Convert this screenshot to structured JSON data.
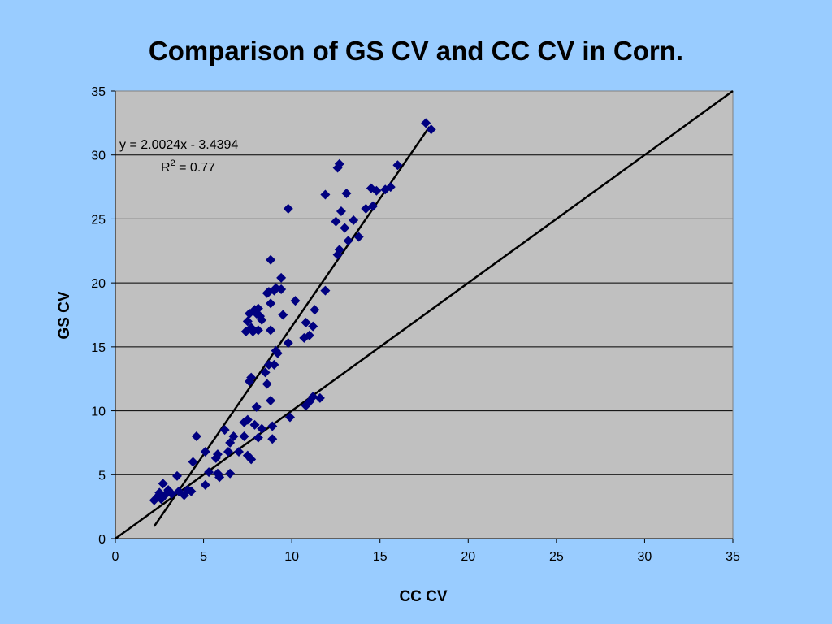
{
  "chart_data": {
    "type": "scatter",
    "title": "Comparison of GS CV and CC CV in Corn.",
    "xlabel": "CC CV",
    "ylabel": "GS CV",
    "xlim": [
      0,
      35
    ],
    "ylim": [
      0,
      35
    ],
    "xticks": [
      0,
      5,
      10,
      15,
      20,
      25,
      30,
      35
    ],
    "yticks": [
      0,
      5,
      10,
      15,
      20,
      25,
      30,
      35
    ],
    "grid": "horizontal",
    "plot_background": "#c0c0c0",
    "marker_color": "#000080",
    "marker": "diamond",
    "trendline": {
      "equation": "y = 2.0024x - 3.4394",
      "r_squared_prefix": "R",
      "r_squared_sup": "2",
      "r_squared_value": " = 0.77",
      "slope": 2.0024,
      "intercept": -3.4394,
      "x_range": [
        2.2,
        17.8
      ]
    },
    "reference_line": {
      "slope": 1,
      "intercept": 0,
      "x_range": [
        0,
        35
      ]
    },
    "points": [
      [
        2.2,
        3.0
      ],
      [
        2.4,
        3.3
      ],
      [
        2.5,
        3.6
      ],
      [
        2.6,
        3.1
      ],
      [
        2.7,
        4.3
      ],
      [
        2.8,
        3.4
      ],
      [
        3.0,
        3.8
      ],
      [
        3.2,
        3.5
      ],
      [
        3.5,
        4.9
      ],
      [
        3.6,
        3.7
      ],
      [
        3.9,
        3.4
      ],
      [
        4.1,
        3.8
      ],
      [
        4.3,
        3.7
      ],
      [
        4.4,
        6.0
      ],
      [
        4.6,
        8.0
      ],
      [
        5.1,
        6.8
      ],
      [
        5.1,
        4.2
      ],
      [
        5.3,
        5.2
      ],
      [
        5.7,
        6.3
      ],
      [
        5.8,
        6.6
      ],
      [
        5.8,
        5.1
      ],
      [
        5.9,
        4.8
      ],
      [
        6.2,
        8.5
      ],
      [
        6.4,
        6.8
      ],
      [
        6.5,
        5.1
      ],
      [
        6.5,
        7.5
      ],
      [
        6.7,
        8.0
      ],
      [
        7.0,
        6.8
      ],
      [
        7.3,
        9.1
      ],
      [
        7.3,
        8.0
      ],
      [
        7.5,
        9.3
      ],
      [
        7.5,
        6.5
      ],
      [
        7.7,
        6.2
      ],
      [
        7.9,
        8.9
      ],
      [
        8.0,
        10.3
      ],
      [
        8.1,
        7.9
      ],
      [
        8.3,
        8.6
      ],
      [
        8.5,
        13.0
      ],
      [
        8.6,
        12.1
      ],
      [
        8.7,
        13.6
      ],
      [
        8.8,
        16.3
      ],
      [
        8.8,
        10.8
      ],
      [
        8.9,
        8.8
      ],
      [
        8.9,
        7.8
      ],
      [
        9.0,
        13.6
      ],
      [
        9.1,
        14.7
      ],
      [
        9.2,
        14.5
      ],
      [
        9.5,
        17.5
      ],
      [
        9.8,
        15.3
      ],
      [
        9.9,
        9.5
      ],
      [
        7.4,
        16.2
      ],
      [
        7.5,
        17.0
      ],
      [
        7.6,
        17.6
      ],
      [
        7.6,
        12.3
      ],
      [
        7.7,
        12.6
      ],
      [
        7.7,
        16.5
      ],
      [
        7.8,
        16.2
      ],
      [
        7.9,
        17.9
      ],
      [
        8.0,
        17.6
      ],
      [
        8.1,
        16.3
      ],
      [
        8.1,
        18.0
      ],
      [
        8.2,
        17.4
      ],
      [
        8.3,
        17.1
      ],
      [
        8.6,
        19.2
      ],
      [
        8.7,
        19.3
      ],
      [
        8.8,
        18.4
      ],
      [
        8.8,
        21.8
      ],
      [
        9.0,
        19.4
      ],
      [
        9.1,
        19.6
      ],
      [
        9.4,
        19.5
      ],
      [
        9.4,
        20.4
      ],
      [
        9.8,
        25.8
      ],
      [
        10.2,
        18.6
      ],
      [
        10.7,
        15.7
      ],
      [
        10.8,
        16.9
      ],
      [
        10.8,
        10.4
      ],
      [
        11.0,
        15.9
      ],
      [
        11.0,
        10.7
      ],
      [
        11.2,
        16.6
      ],
      [
        11.2,
        11.1
      ],
      [
        11.3,
        17.9
      ],
      [
        11.6,
        11.0
      ],
      [
        11.9,
        19.4
      ],
      [
        11.9,
        26.9
      ],
      [
        12.5,
        24.8
      ],
      [
        12.6,
        29.0
      ],
      [
        12.6,
        22.2
      ],
      [
        12.7,
        29.3
      ],
      [
        12.7,
        22.6
      ],
      [
        12.8,
        25.6
      ],
      [
        13.0,
        24.3
      ],
      [
        13.1,
        27.0
      ],
      [
        13.2,
        23.3
      ],
      [
        13.5,
        24.9
      ],
      [
        13.8,
        23.6
      ],
      [
        14.2,
        25.8
      ],
      [
        14.5,
        27.4
      ],
      [
        14.6,
        26.0
      ],
      [
        14.8,
        27.2
      ],
      [
        15.3,
        27.3
      ],
      [
        15.6,
        27.5
      ],
      [
        16.0,
        29.2
      ],
      [
        17.6,
        32.5
      ],
      [
        17.9,
        32.0
      ]
    ]
  }
}
